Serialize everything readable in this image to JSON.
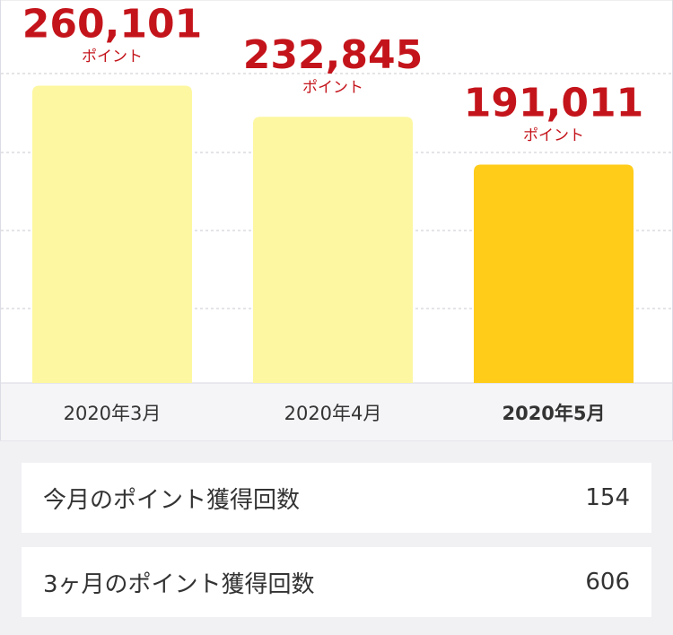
{
  "chart_data": {
    "type": "bar",
    "categories": [
      "2020年3月",
      "2020年4月",
      "2020年5月"
    ],
    "values": [
      260101,
      232845,
      191011
    ],
    "value_labels": [
      "260,101",
      "232,845",
      "191,011"
    ],
    "unit": "ポイント",
    "colors": [
      "#fdf7a1",
      "#fdf7a1",
      "#ffcc1a"
    ],
    "highlight": 2,
    "ylim": [
      0,
      335000
    ]
  },
  "stats": [
    {
      "label": "今月のポイント獲得回数",
      "value": 154
    },
    {
      "label": "3ヶ月のポイント獲得回数",
      "value": 606
    }
  ]
}
